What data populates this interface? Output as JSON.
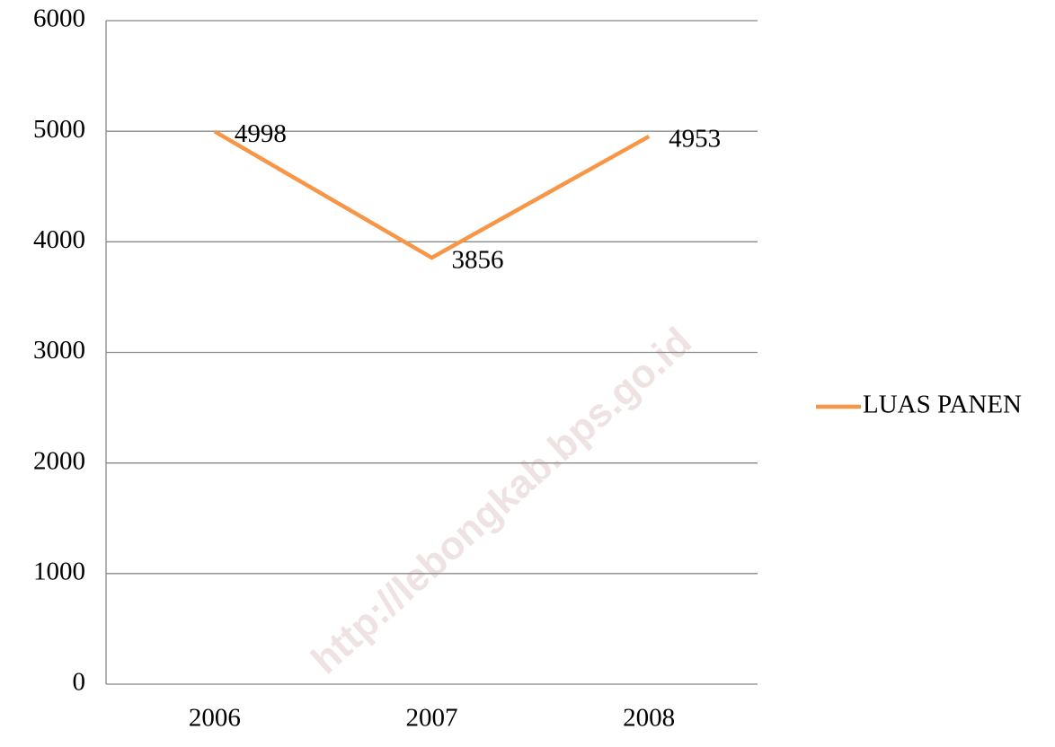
{
  "chart_data": {
    "type": "line",
    "categories": [
      "2006",
      "2007",
      "2008"
    ],
    "series": [
      {
        "name": "LUAS PANEN",
        "color": "#f79646",
        "values": [
          4998,
          3856,
          4953
        ]
      }
    ],
    "ylim": [
      0,
      6000
    ],
    "yticks": [
      0,
      1000,
      2000,
      3000,
      4000,
      5000,
      6000
    ],
    "grid": true,
    "legend": "right",
    "watermark": "http://lebongkab.bps.go.id"
  }
}
